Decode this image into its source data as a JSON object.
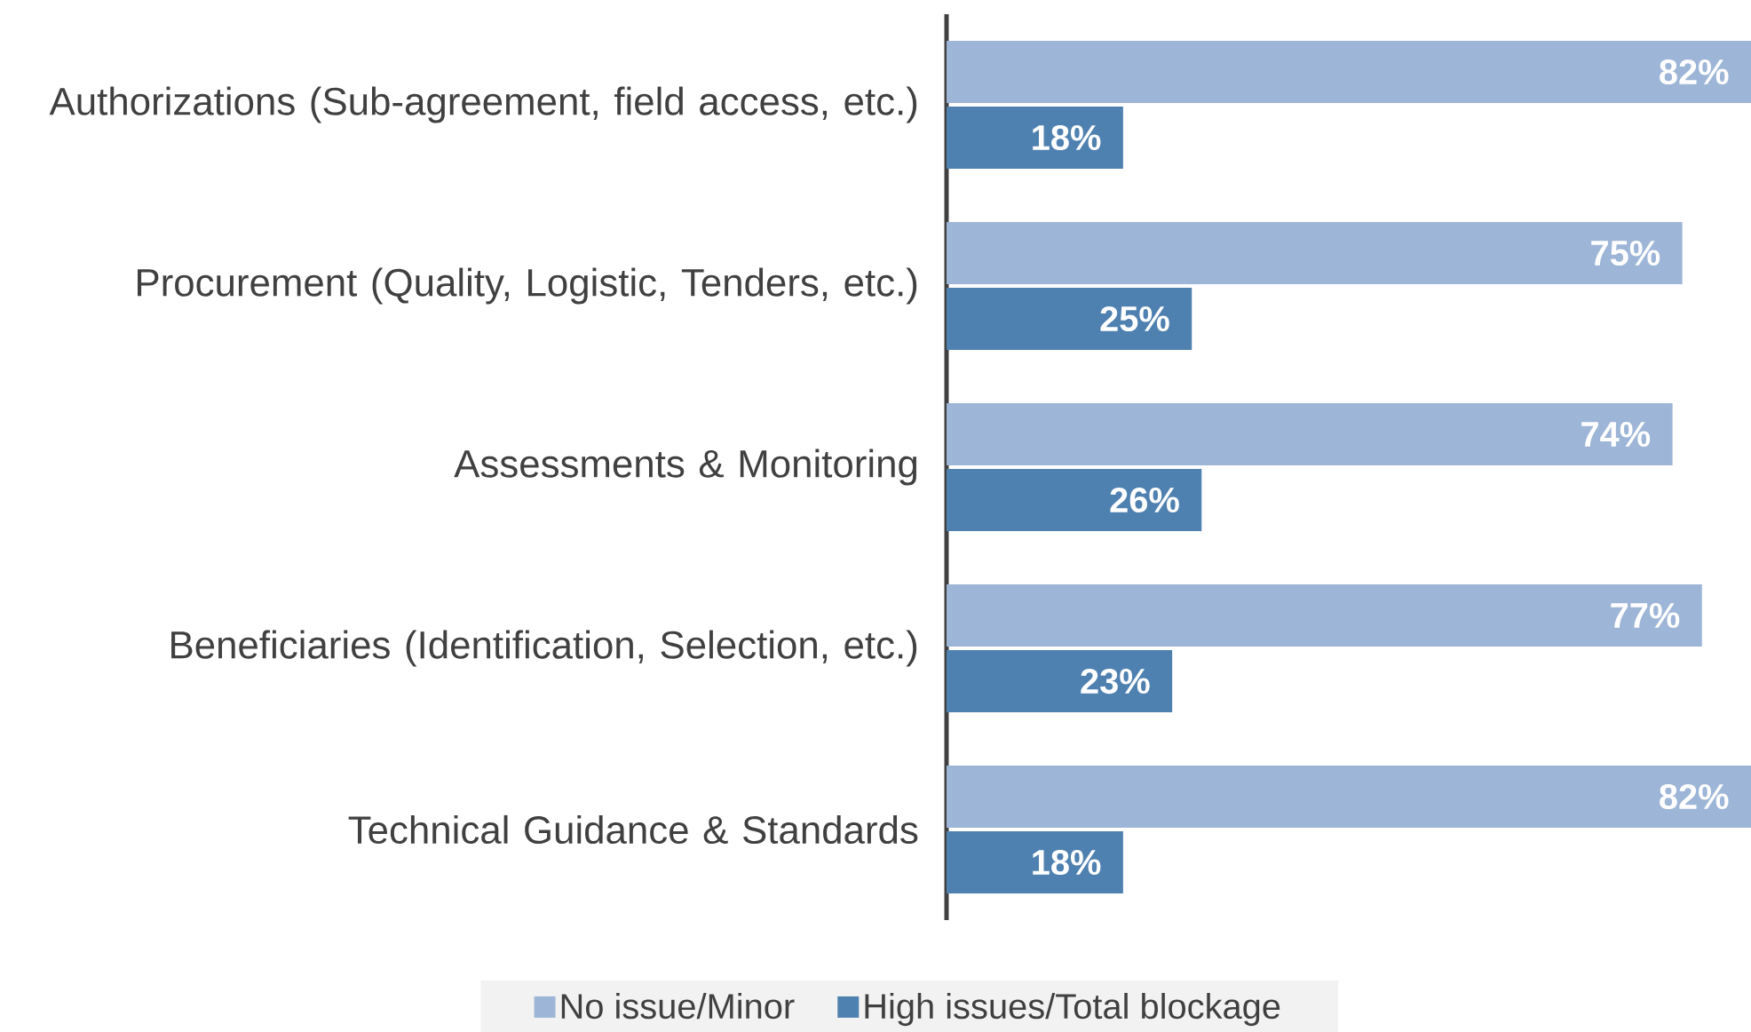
{
  "chart_data": {
    "type": "bar",
    "orientation": "horizontal",
    "legend": "bottom",
    "categories": [
      "Authorizations (Sub-agreement, field access, etc.)",
      "Procurement (Quality, Logistic, Tenders, etc.)",
      "Assessments & Monitoring",
      "Beneficiaries (Identification, Selection, etc.)",
      "Technical Guidance & Standards"
    ],
    "series": [
      {
        "name": "No issue/Minor",
        "color": "#9db5d6",
        "values": [
          82,
          75,
          74,
          77,
          82
        ],
        "value_labels": [
          "82%",
          "75%",
          "74%",
          "77%",
          "82%"
        ]
      },
      {
        "name": "High issues/Total blockage",
        "color": "#4f81b0",
        "values": [
          18,
          25,
          26,
          23,
          18
        ],
        "value_labels": [
          "18%",
          "25%",
          "26%",
          "23%",
          "18%"
        ]
      }
    ]
  }
}
